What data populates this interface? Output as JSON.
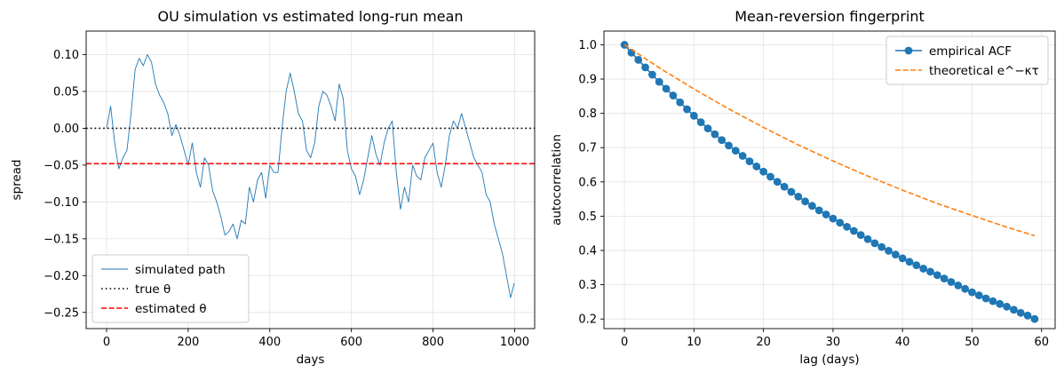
{
  "chart_data": [
    {
      "type": "line",
      "title": "OU simulation vs estimated long-run mean",
      "xlabel": "days",
      "ylabel": "spread",
      "xlim": [
        -50,
        1049
      ],
      "ylim": [
        -0.272,
        0.132
      ],
      "xticks": [
        0,
        200,
        400,
        600,
        800,
        1000
      ],
      "xtick_labels": [
        "0",
        "200",
        "400",
        "600",
        "800",
        "1000"
      ],
      "yticks": [
        -0.25,
        -0.2,
        -0.15,
        -0.1,
        -0.05,
        0.0,
        0.05,
        0.1
      ],
      "ytick_labels": [
        "−0.25",
        "−0.20",
        "−0.15",
        "−0.10",
        "−0.05",
        "0.00",
        "0.05",
        "0.10"
      ],
      "grid": true,
      "legend_position": "lower-left",
      "series": [
        {
          "name": "simulated path",
          "style": "solid-thin",
          "color": "#1f77b4",
          "x": [
            0,
            10,
            20,
            30,
            40,
            50,
            60,
            70,
            80,
            90,
            100,
            110,
            120,
            130,
            140,
            150,
            160,
            170,
            180,
            190,
            200,
            210,
            220,
            230,
            240,
            250,
            260,
            270,
            280,
            290,
            300,
            310,
            320,
            330,
            340,
            350,
            360,
            370,
            380,
            390,
            400,
            410,
            420,
            430,
            440,
            450,
            460,
            470,
            480,
            490,
            500,
            510,
            520,
            530,
            540,
            550,
            560,
            570,
            580,
            590,
            600,
            610,
            620,
            630,
            640,
            650,
            660,
            670,
            680,
            690,
            700,
            710,
            720,
            730,
            740,
            750,
            760,
            770,
            780,
            790,
            800,
            810,
            820,
            830,
            840,
            850,
            860,
            870,
            880,
            890,
            900,
            910,
            920,
            930,
            940,
            950,
            960,
            970,
            980,
            990,
            999
          ],
          "y": [
            0.0,
            0.03,
            -0.02,
            -0.055,
            -0.04,
            -0.03,
            0.02,
            0.08,
            0.095,
            0.085,
            0.1,
            0.09,
            0.06,
            0.045,
            0.035,
            0.02,
            -0.01,
            0.005,
            -0.01,
            -0.03,
            -0.05,
            -0.02,
            -0.06,
            -0.08,
            -0.04,
            -0.05,
            -0.085,
            -0.1,
            -0.12,
            -0.145,
            -0.14,
            -0.13,
            -0.15,
            -0.125,
            -0.13,
            -0.08,
            -0.1,
            -0.07,
            -0.06,
            -0.095,
            -0.05,
            -0.06,
            -0.06,
            0.0,
            0.05,
            0.075,
            0.05,
            0.02,
            0.01,
            -0.03,
            -0.04,
            -0.02,
            0.03,
            0.05,
            0.045,
            0.03,
            0.01,
            0.06,
            0.04,
            -0.03,
            -0.055,
            -0.065,
            -0.09,
            -0.07,
            -0.04,
            -0.01,
            -0.035,
            -0.05,
            -0.02,
            0.0,
            0.01,
            -0.06,
            -0.11,
            -0.08,
            -0.1,
            -0.05,
            -0.065,
            -0.07,
            -0.04,
            -0.03,
            -0.02,
            -0.06,
            -0.08,
            -0.05,
            -0.01,
            0.01,
            0.0,
            0.02,
            0.0,
            -0.02,
            -0.04,
            -0.05,
            -0.06,
            -0.09,
            -0.1,
            -0.13,
            -0.15,
            -0.17,
            -0.2,
            -0.23,
            -0.21
          ]
        },
        {
          "name": "true θ",
          "style": "dotted",
          "color": "#000000",
          "x": [
            -50,
            1049
          ],
          "y": [
            0.0,
            0.0
          ]
        },
        {
          "name": "estimated θ",
          "style": "dashed",
          "color": "#ff0000",
          "x": [
            -50,
            1049
          ],
          "y": [
            -0.048,
            -0.048
          ]
        }
      ]
    },
    {
      "type": "line",
      "title": "Mean-reversion fingerprint",
      "xlabel": "lag (days)",
      "ylabel": "autocorrelation",
      "xlim": [
        -2.95,
        61.95
      ],
      "ylim": [
        0.172,
        1.04
      ],
      "xticks": [
        0,
        10,
        20,
        30,
        40,
        50,
        60
      ],
      "xtick_labels": [
        "0",
        "10",
        "20",
        "30",
        "40",
        "50",
        "60"
      ],
      "yticks": [
        0.2,
        0.3,
        0.4,
        0.5,
        0.6,
        0.7,
        0.8,
        0.9,
        1.0
      ],
      "ytick_labels": [
        "0.2",
        "0.3",
        "0.4",
        "0.5",
        "0.6",
        "0.7",
        "0.8",
        "0.9",
        "1.0"
      ],
      "grid": true,
      "legend_position": "top-right",
      "series": [
        {
          "name": "empirical ACF",
          "style": "line-with-markers",
          "color": "#1f77b4",
          "x": [
            0,
            1,
            2,
            3,
            4,
            5,
            6,
            7,
            8,
            9,
            10,
            11,
            12,
            13,
            14,
            15,
            16,
            17,
            18,
            19,
            20,
            21,
            22,
            23,
            24,
            25,
            26,
            27,
            28,
            29,
            30,
            31,
            32,
            33,
            34,
            35,
            36,
            37,
            38,
            39,
            40,
            41,
            42,
            43,
            44,
            45,
            46,
            47,
            48,
            49,
            50,
            51,
            52,
            53,
            54,
            55,
            56,
            57,
            58,
            59
          ],
          "y": [
            1.0,
            0.977,
            0.956,
            0.934,
            0.913,
            0.892,
            0.872,
            0.852,
            0.832,
            0.812,
            0.793,
            0.774,
            0.756,
            0.739,
            0.722,
            0.706,
            0.691,
            0.676,
            0.66,
            0.645,
            0.63,
            0.615,
            0.6,
            0.586,
            0.571,
            0.557,
            0.543,
            0.53,
            0.517,
            0.505,
            0.493,
            0.481,
            0.469,
            0.457,
            0.445,
            0.433,
            0.421,
            0.41,
            0.399,
            0.388,
            0.377,
            0.367,
            0.357,
            0.347,
            0.338,
            0.328,
            0.318,
            0.308,
            0.298,
            0.288,
            0.278,
            0.269,
            0.26,
            0.252,
            0.244,
            0.236,
            0.227,
            0.218,
            0.21,
            0.2
          ]
        },
        {
          "name": "theoretical e^−κτ",
          "style": "dashed",
          "color": "#ff7f0e",
          "x": [
            0,
            5,
            10,
            15,
            20,
            25,
            30,
            35,
            40,
            45,
            50,
            55,
            59
          ],
          "y": [
            1.0,
            0.933,
            0.871,
            0.813,
            0.759,
            0.708,
            0.661,
            0.617,
            0.576,
            0.537,
            0.502,
            0.468,
            0.443
          ]
        }
      ]
    }
  ]
}
